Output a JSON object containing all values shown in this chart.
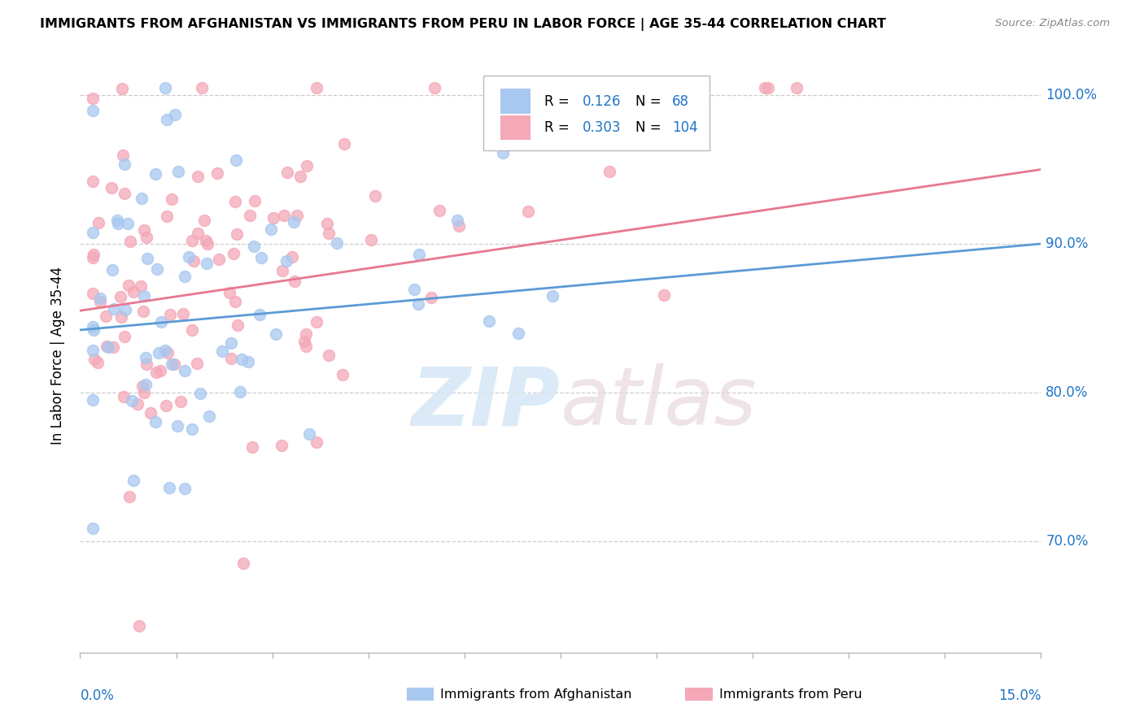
{
  "title": "IMMIGRANTS FROM AFGHANISTAN VS IMMIGRANTS FROM PERU IN LABOR FORCE | AGE 35-44 CORRELATION CHART",
  "source": "Source: ZipAtlas.com",
  "ylabel": "In Labor Force | Age 35-44",
  "r_afghanistan": 0.126,
  "n_afghanistan": 68,
  "r_peru": 0.303,
  "n_peru": 104,
  "color_afghanistan": "#a8c8f0",
  "color_peru": "#f4a8b8",
  "color_line_afghanistan": "#5b9bd5",
  "color_line_peru": "#e87890",
  "color_blue_text": "#2075c7",
  "xmin": 0.0,
  "xmax": 0.15,
  "ymin": 0.625,
  "ymax": 1.025,
  "ytick_values": [
    0.7,
    0.8,
    0.9,
    1.0
  ],
  "ytick_labels": [
    "70.0%",
    "80.0%",
    "90.0%",
    "100.0%"
  ],
  "grid_color": "#cccccc",
  "legend_edge_color": "#bbbbbb",
  "bg_color": "#ffffff"
}
